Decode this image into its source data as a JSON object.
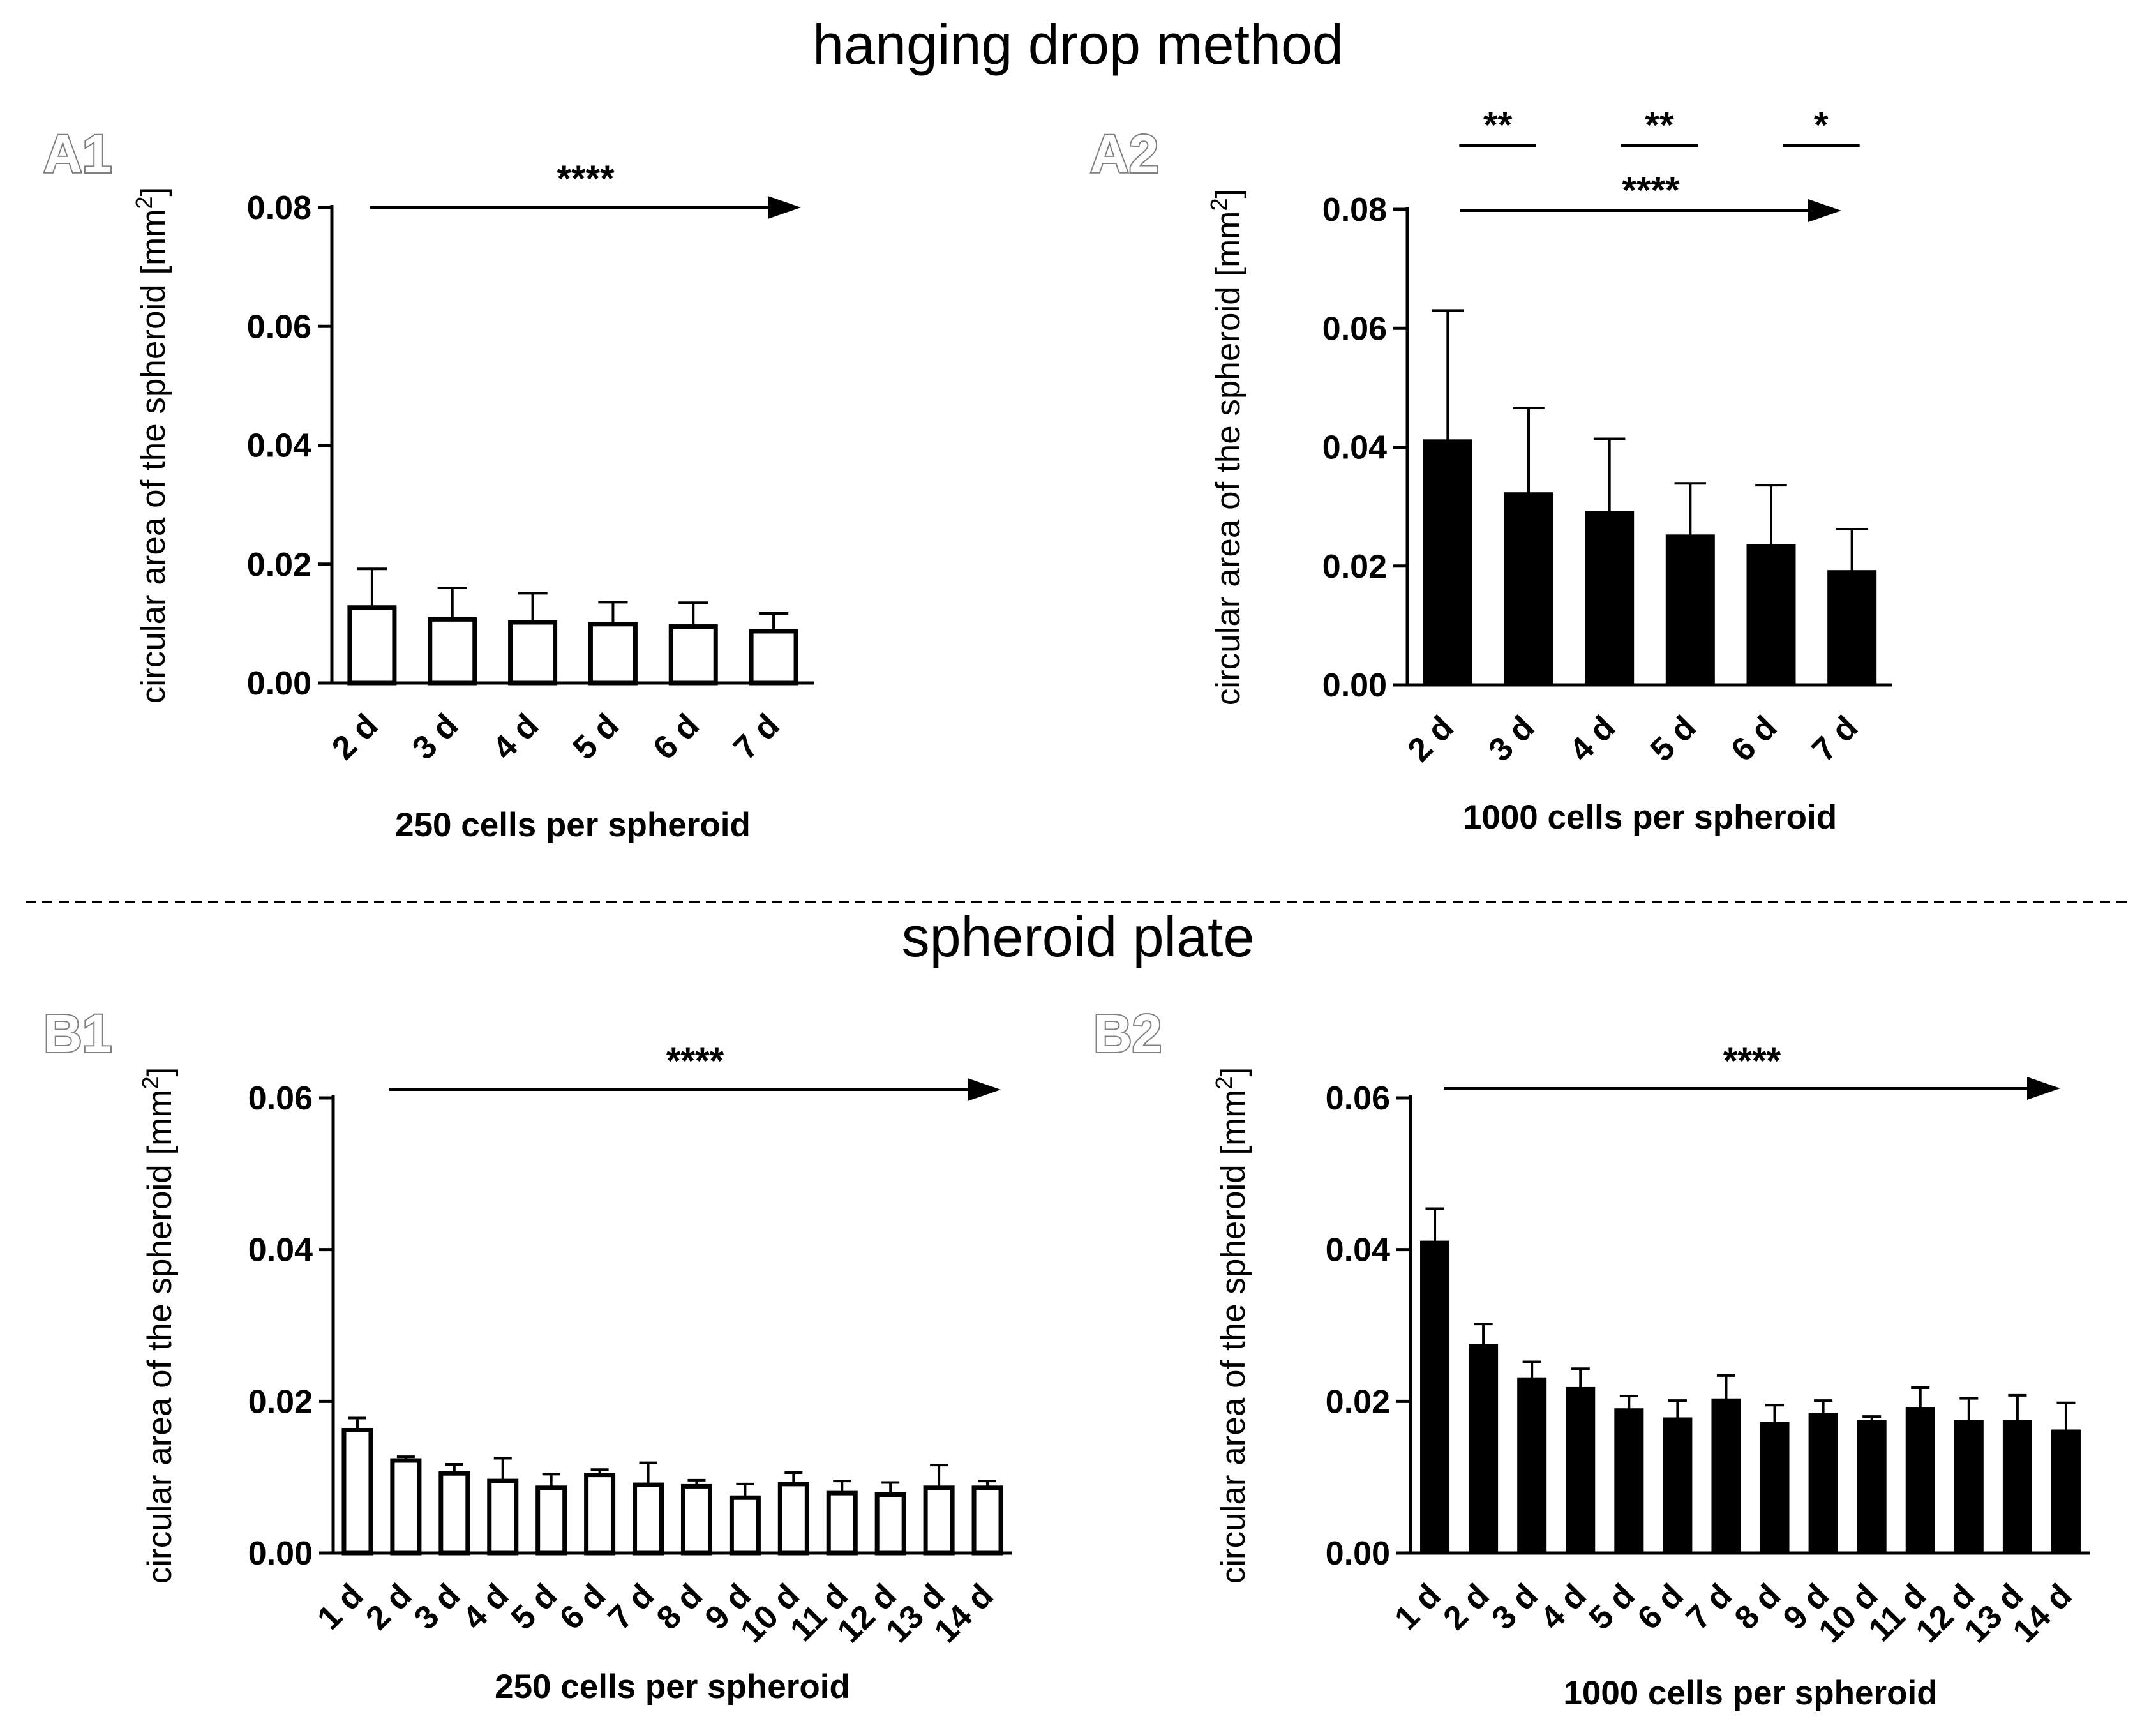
{
  "sections": {
    "top_title": "hanging drop method",
    "bottom_title": "spheroid plate"
  },
  "colors": {
    "open_bar": "#ffffff",
    "filled_bar": "#000000",
    "axis": "#000000",
    "divider": "#000000"
  },
  "chart_data": [
    {
      "panel": "A1",
      "type": "bar",
      "categories": [
        "2 d",
        "3 d",
        "4 d",
        "5 d",
        "6 d",
        "7 d"
      ],
      "values": [
        0.0127,
        0.0107,
        0.0102,
        0.0099,
        0.0095,
        0.0087
      ],
      "errors": [
        0.0065,
        0.0053,
        0.0049,
        0.0037,
        0.004,
        0.003
      ],
      "bar_style": "open",
      "ylim": [
        0,
        0.08
      ],
      "yticks": [
        "0.00",
        "0.02",
        "0.04",
        "0.06",
        "0.08"
      ],
      "ylabel": "circular area of the spheroid [mm",
      "ylabel_sup": "2",
      "ylabel_end": "]",
      "xlabel": "250  cells per spheroid",
      "trend_label": "****",
      "brackets": []
    },
    {
      "panel": "A2",
      "type": "bar",
      "categories": [
        "2 d",
        "3 d",
        "4 d",
        "5 d",
        "6 d",
        "7 d"
      ],
      "values": [
        0.0412,
        0.0323,
        0.0292,
        0.0252,
        0.0236,
        0.0192
      ],
      "errors": [
        0.0218,
        0.0143,
        0.0122,
        0.0087,
        0.01,
        0.007
      ],
      "bar_style": "filled",
      "ylim": [
        0,
        0.08
      ],
      "yticks": [
        "0.00",
        "0.02",
        "0.04",
        "0.06",
        "0.08"
      ],
      "ylabel": "circular area of the spheroid [mm",
      "ylabel_sup": "2",
      "ylabel_end": "]",
      "xlabel": "1000  cells per spheroid",
      "trend_label": "****",
      "brackets": [
        {
          "from": 0,
          "to": 1,
          "label": "**"
        },
        {
          "from": 2,
          "to": 3,
          "label": "**"
        },
        {
          "from": 4,
          "to": 5,
          "label": "*"
        }
      ]
    },
    {
      "panel": "B1",
      "type": "bar",
      "categories": [
        "1 d",
        "2 d",
        "3 d",
        "4 d",
        "5 d",
        "6 d",
        "7 d",
        "8 d",
        "9 d",
        "10 d",
        "11 d",
        "12 d",
        "13 d",
        "14 d"
      ],
      "values": [
        0.0162,
        0.0122,
        0.0105,
        0.0095,
        0.0086,
        0.0103,
        0.009,
        0.0088,
        0.0073,
        0.0091,
        0.0079,
        0.0077,
        0.0086,
        0.0086
      ],
      "errors": [
        0.0016,
        0.0005,
        0.0012,
        0.003,
        0.0018,
        0.0007,
        0.0029,
        0.0008,
        0.0018,
        0.0015,
        0.0016,
        0.0016,
        0.003,
        0.0009
      ],
      "bar_style": "open",
      "ylim": [
        0,
        0.06
      ],
      "yticks": [
        "0.00",
        "0.02",
        "0.04",
        "0.06"
      ],
      "ylabel": "circular area of the spheroid [mm",
      "ylabel_sup": "2",
      "ylabel_end": "]",
      "xlabel": "250 cells per spheroid",
      "trend_label": "****",
      "brackets": []
    },
    {
      "panel": "B2",
      "type": "bar",
      "categories": [
        "1 d",
        "2 d",
        "3 d",
        "4 d",
        "5 d",
        "6 d",
        "7 d",
        "8 d",
        "9 d",
        "10 d",
        "11 d",
        "12 d",
        "13 d",
        "14 d"
      ],
      "values": [
        0.0411,
        0.0275,
        0.023,
        0.0218,
        0.019,
        0.0178,
        0.0203,
        0.0172,
        0.0184,
        0.0175,
        0.0191,
        0.0175,
        0.0175,
        0.0162
      ],
      "errors": [
        0.0043,
        0.0027,
        0.0022,
        0.0025,
        0.0017,
        0.0023,
        0.0031,
        0.0023,
        0.0017,
        0.0005,
        0.0027,
        0.0029,
        0.0033,
        0.0036
      ],
      "bar_style": "filled",
      "ylim": [
        0,
        0.06
      ],
      "yticks": [
        "0.00",
        "0.02",
        "0.04",
        "0.06"
      ],
      "ylabel": "circular area of the spheroid [mm",
      "ylabel_sup": "2",
      "ylabel_end": "]",
      "xlabel": "1000 cells per spheroid",
      "trend_label": "****",
      "brackets": []
    }
  ]
}
